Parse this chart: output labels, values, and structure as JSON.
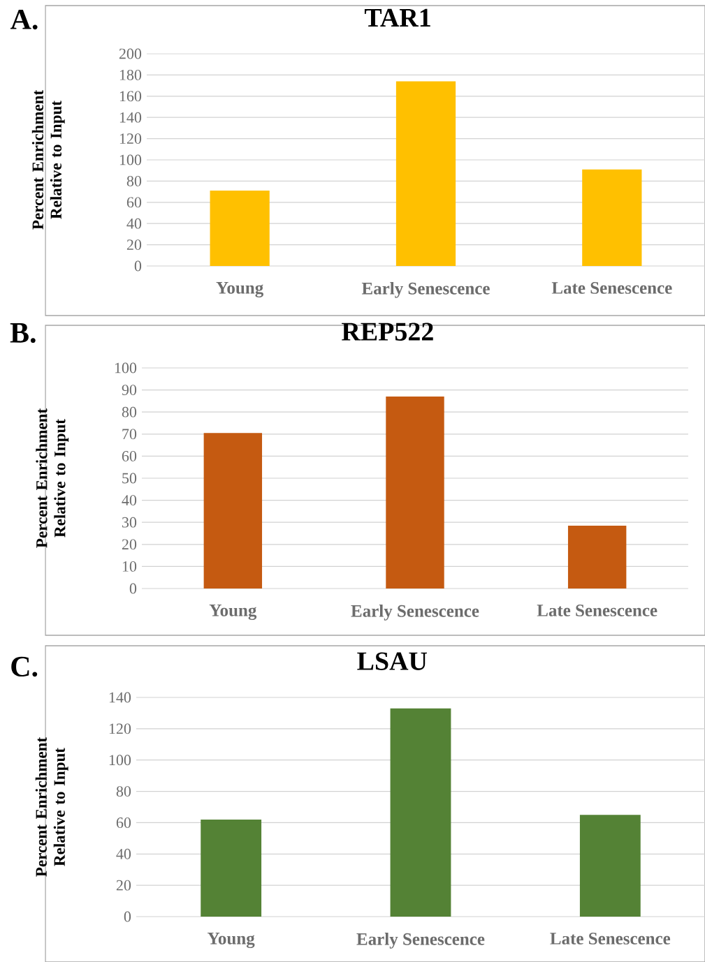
{
  "chart_data": [
    {
      "type": "bar",
      "title": "TAR1",
      "ylabel": "Percent Enrichment Relative to Input",
      "categories": [
        "Young",
        "Early Senescence",
        "Late Senescence"
      ],
      "values": [
        71,
        174,
        91
      ],
      "color": "#ffc000",
      "ylim": [
        0,
        200
      ],
      "yticks": [
        0,
        20,
        40,
        60,
        80,
        100,
        120,
        140,
        160,
        180,
        200
      ],
      "grid": "y",
      "annotations": [
        "A."
      ]
    },
    {
      "type": "bar",
      "title": "REP522",
      "ylabel": "Percent Enrichment Relative to Input",
      "categories": [
        "Young",
        "Early Senescence",
        "Late Senescence"
      ],
      "values": [
        70.5,
        87,
        28.5
      ],
      "color": "#c55a11",
      "ylim": [
        0,
        100
      ],
      "yticks": [
        0,
        10,
        20,
        30,
        40,
        50,
        60,
        70,
        80,
        90,
        100
      ],
      "grid": "y",
      "annotations": [
        "B."
      ]
    },
    {
      "type": "bar",
      "title": "LSAU",
      "ylabel": "Percent Enrichment Relative to Input",
      "categories": [
        "Young",
        "Early Senescence",
        "Late Senescence"
      ],
      "values": [
        62,
        133,
        65
      ],
      "color": "#548235",
      "ylim": [
        0,
        140
      ],
      "yticks": [
        0,
        20,
        40,
        60,
        80,
        100,
        120,
        140
      ],
      "grid": "y",
      "annotations": [
        "C."
      ]
    }
  ]
}
